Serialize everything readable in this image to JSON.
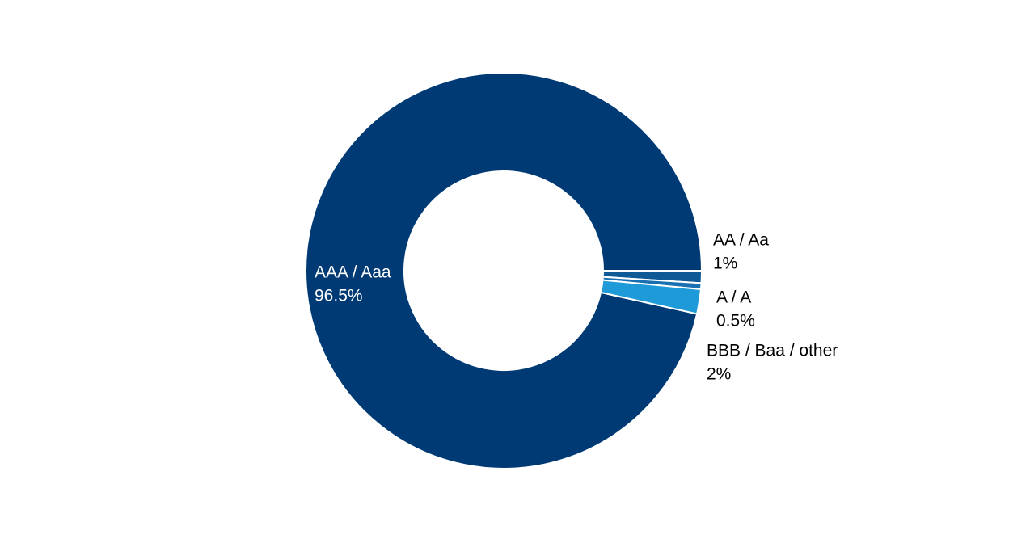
{
  "chart_data": {
    "type": "pie",
    "categories": [
      "AAA / Aaa",
      "AA / Aa",
      "A / A",
      "BBB / Baa / other"
    ],
    "values": [
      96.5,
      1,
      0.5,
      2
    ],
    "value_labels": [
      "96.5%",
      "1%",
      "0.5%",
      "2%"
    ],
    "colors": [
      "#003a75",
      "#0d5a96",
      "#1870b0",
      "#1f9ad9"
    ]
  }
}
